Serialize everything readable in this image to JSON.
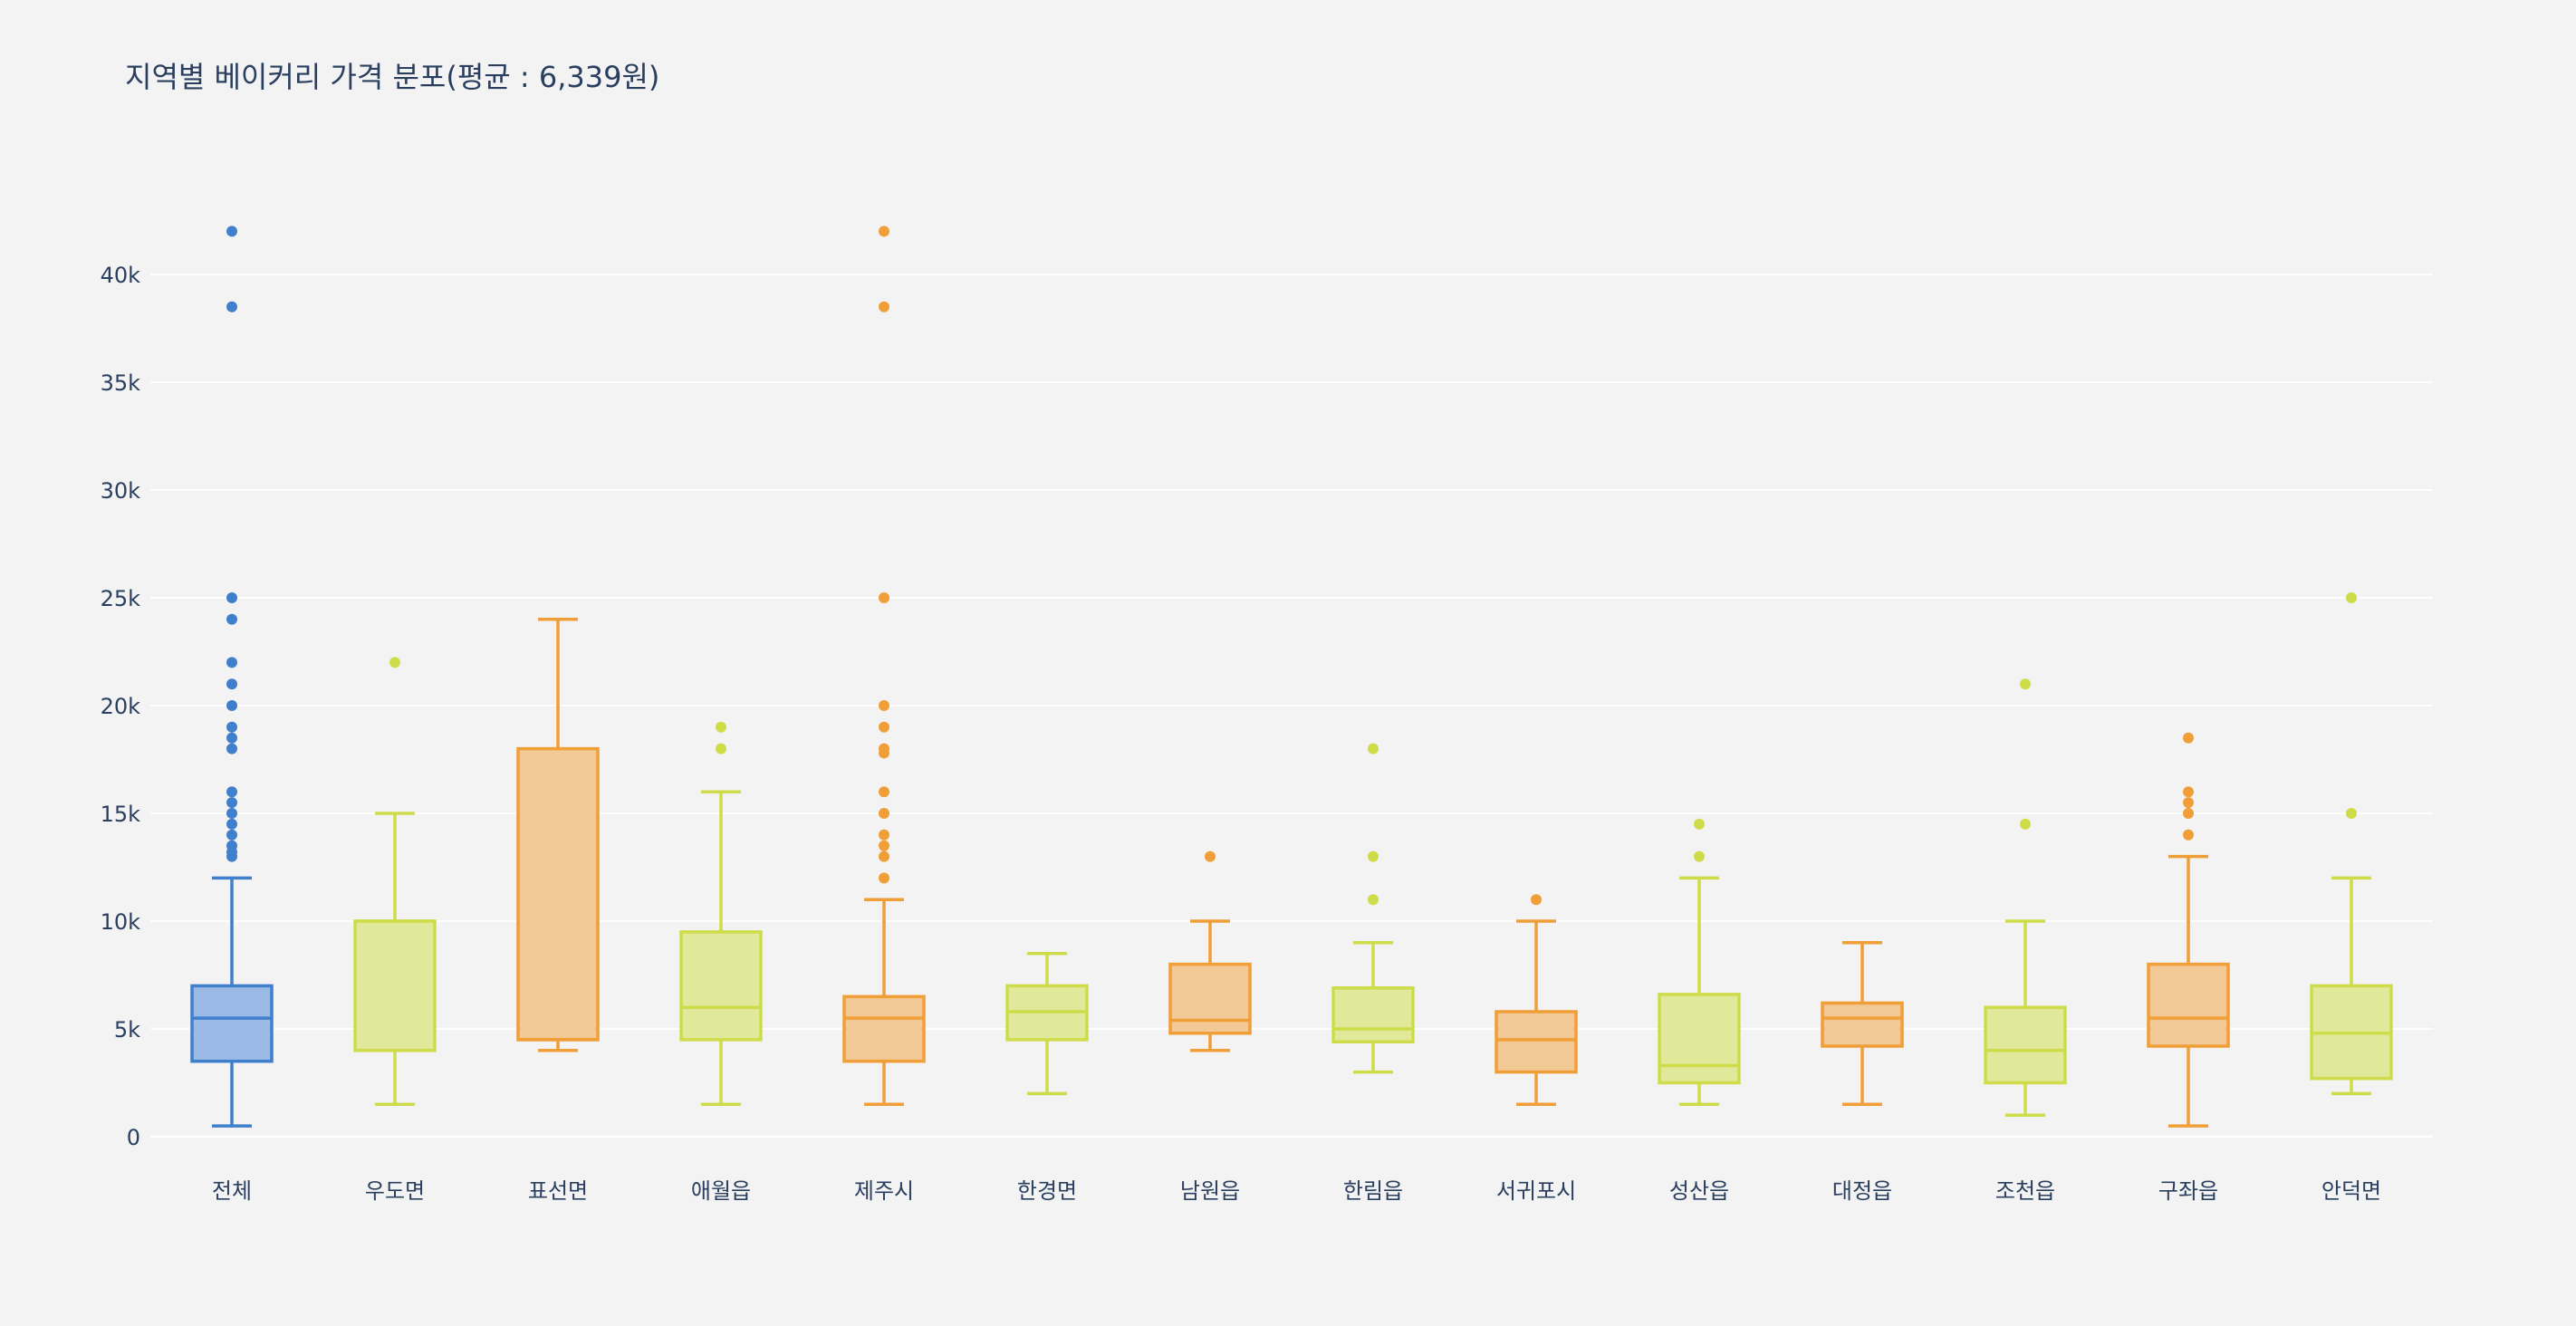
{
  "chart_data": {
    "type": "box",
    "title": "지역별 베이커리 가격 분포(평균 : 6,339원)",
    "xlabel": "",
    "ylabel": "",
    "ylim": [
      -500,
      42500
    ],
    "y_ticks": [
      {
        "value": 0,
        "label": "0"
      },
      {
        "value": 5000,
        "label": "5k"
      },
      {
        "value": 10000,
        "label": "10k"
      },
      {
        "value": 15000,
        "label": "15k"
      },
      {
        "value": 20000,
        "label": "20k"
      },
      {
        "value": 25000,
        "label": "25k"
      },
      {
        "value": 30000,
        "label": "30k"
      },
      {
        "value": 35000,
        "label": "35k"
      },
      {
        "value": 40000,
        "label": "40k"
      }
    ],
    "grid": true,
    "legend": "none",
    "colors": {
      "blue": "#3f7fcc",
      "blue_fill": "#9bbbe6",
      "lime": "#cddc48",
      "lime_fill": "#e0e89a",
      "orange": "#f09e38",
      "orange_fill": "#f2c994",
      "grid": "#ffffff",
      "background": "#f3f3f3",
      "text": "#2a3f5f"
    },
    "categories": [
      "전체",
      "우도면",
      "표선면",
      "애월읍",
      "제주시",
      "한경면",
      "남원읍",
      "한림읍",
      "서귀포시",
      "성산읍",
      "대정읍",
      "조천읍",
      "구좌읍",
      "안덕면"
    ],
    "boxes": [
      {
        "name": "전체",
        "color": "blue",
        "min": 500,
        "q1": 3500,
        "median": 5500,
        "q3": 7000,
        "max": 12000,
        "outliers": [
          13000,
          13200,
          13500,
          14000,
          14500,
          15000,
          15500,
          16000,
          18000,
          18500,
          19000,
          20000,
          21000,
          22000,
          24000,
          25000,
          38500,
          42000
        ]
      },
      {
        "name": "우도면",
        "color": "lime",
        "min": 1500,
        "q1": 4000,
        "median": 10000,
        "q3": 10000,
        "max": 15000,
        "outliers": [
          22000
        ]
      },
      {
        "name": "표선면",
        "color": "orange",
        "min": 4000,
        "q1": 4500,
        "median": 4500,
        "q3": 18000,
        "max": 24000,
        "outliers": []
      },
      {
        "name": "애월읍",
        "color": "lime",
        "min": 1500,
        "q1": 4500,
        "median": 6000,
        "q3": 9500,
        "max": 16000,
        "outliers": [
          18000,
          19000
        ]
      },
      {
        "name": "제주시",
        "color": "orange",
        "min": 1500,
        "q1": 3500,
        "median": 5500,
        "q3": 6500,
        "max": 11000,
        "outliers": [
          12000,
          13000,
          13500,
          14000,
          15000,
          16000,
          17800,
          18000,
          19000,
          20000,
          25000,
          38500,
          42000
        ]
      },
      {
        "name": "한경면",
        "color": "lime",
        "min": 2000,
        "q1": 4500,
        "median": 5800,
        "q3": 7000,
        "max": 8500,
        "outliers": []
      },
      {
        "name": "남원읍",
        "color": "orange",
        "min": 4000,
        "q1": 4800,
        "median": 5400,
        "q3": 8000,
        "max": 10000,
        "outliers": [
          13000
        ]
      },
      {
        "name": "한림읍",
        "color": "lime",
        "min": 3000,
        "q1": 4400,
        "median": 5000,
        "q3": 6900,
        "max": 9000,
        "outliers": [
          11000,
          13000,
          18000
        ]
      },
      {
        "name": "서귀포시",
        "color": "orange",
        "min": 1500,
        "q1": 3000,
        "median": 4500,
        "q3": 5800,
        "max": 10000,
        "outliers": [
          11000
        ]
      },
      {
        "name": "성산읍",
        "color": "lime",
        "min": 1500,
        "q1": 2500,
        "median": 3300,
        "q3": 6600,
        "max": 12000,
        "outliers": [
          13000,
          14500
        ]
      },
      {
        "name": "대정읍",
        "color": "orange",
        "min": 1500,
        "q1": 4200,
        "median": 5500,
        "q3": 6200,
        "max": 9000,
        "outliers": []
      },
      {
        "name": "조천읍",
        "color": "lime",
        "min": 1000,
        "q1": 2500,
        "median": 4000,
        "q3": 6000,
        "max": 10000,
        "outliers": [
          14500,
          21000
        ]
      },
      {
        "name": "구좌읍",
        "color": "orange",
        "min": 500,
        "q1": 4200,
        "median": 5500,
        "q3": 8000,
        "max": 13000,
        "outliers": [
          14000,
          15000,
          15500,
          16000,
          18500
        ]
      },
      {
        "name": "안덕면",
        "color": "lime",
        "min": 2000,
        "q1": 2700,
        "median": 4800,
        "q3": 7000,
        "max": 12000,
        "outliers": [
          15000,
          25000
        ]
      }
    ]
  }
}
